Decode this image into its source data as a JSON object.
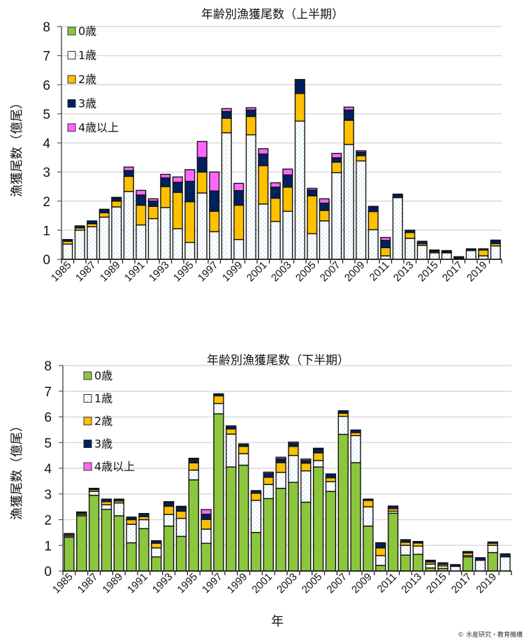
{
  "page": {
    "credit": "© 水産研究・教育機構"
  },
  "chart_data": [
    {
      "type": "bar",
      "stacked": true,
      "title": "年齢別漁獲尾数（上半期）",
      "xlabel": "",
      "ylabel": "漁獲尾数（億尾）",
      "ylim": [
        0,
        8
      ],
      "yticks": [
        "0",
        "1",
        "2",
        "3",
        "4",
        "5",
        "6",
        "7",
        "8"
      ],
      "grid": true,
      "legend_position": "top-left",
      "categories": [
        "1985",
        "1986",
        "1987",
        "1988",
        "1989",
        "1990",
        "1991",
        "1992",
        "1993",
        "1994",
        "1995",
        "1996",
        "1997",
        "1998",
        "1999",
        "2000",
        "2001",
        "2002",
        "2003",
        "2004",
        "2005",
        "2006",
        "2007",
        "2008",
        "2009",
        "2010",
        "2011",
        "2012",
        "2013",
        "2014",
        "2015",
        "2016",
        "2017",
        "2018",
        "2019",
        "2020"
      ],
      "xtick_labels": [
        "1985",
        "1987",
        "1989",
        "1991",
        "1993",
        "1995",
        "1997",
        "1999",
        "2001",
        "2003",
        "2005",
        "2007",
        "2009",
        "2011",
        "2013",
        "2015",
        "2017",
        "2019"
      ],
      "series": [
        {
          "name": "0歳",
          "color": "#8cc63f",
          "pattern": "solid",
          "values": [
            0,
            0,
            0,
            0,
            0,
            0,
            0,
            0,
            0,
            0,
            0,
            0,
            0,
            0,
            0,
            0,
            0,
            0,
            0,
            0,
            0,
            0,
            0,
            0,
            0,
            0,
            0,
            0,
            0,
            0,
            0,
            0,
            0,
            0,
            0,
            0
          ]
        },
        {
          "name": "1歳",
          "color": "#ffffff",
          "pattern": "dots",
          "values": [
            0.52,
            1.0,
            1.12,
            1.45,
            1.8,
            2.33,
            1.18,
            1.4,
            1.78,
            1.05,
            0.58,
            2.28,
            0.95,
            4.35,
            0.68,
            4.28,
            1.9,
            1.3,
            1.65,
            4.75,
            0.88,
            1.32,
            2.98,
            3.95,
            3.38,
            1.02,
            0.12,
            2.12,
            0.72,
            0.48,
            0.22,
            0.22,
            0.03,
            0.3,
            0.12,
            0.46
          ]
        },
        {
          "name": "2歳",
          "color": "#ffc000",
          "pattern": "solid",
          "values": [
            0.1,
            0.08,
            0.1,
            0.15,
            0.2,
            0.52,
            0.68,
            0.42,
            0.72,
            1.25,
            1.4,
            0.72,
            0.7,
            0.5,
            1.18,
            0.63,
            1.32,
            0.8,
            0.83,
            0.95,
            1.3,
            0.36,
            0.36,
            0.83,
            0.18,
            0.62,
            0.28,
            0.02,
            0.2,
            0.06,
            0.04,
            0.03,
            0.03,
            0.0,
            0.2,
            0.08
          ]
        },
        {
          "name": "3歳",
          "color": "#002060",
          "pattern": "solid",
          "values": [
            0.06,
            0.07,
            0.1,
            0.12,
            0.1,
            0.2,
            0.35,
            0.18,
            0.3,
            0.35,
            0.7,
            0.5,
            0.7,
            0.23,
            0.5,
            0.22,
            0.4,
            0.38,
            0.42,
            0.48,
            0.2,
            0.25,
            0.15,
            0.35,
            0.12,
            0.18,
            0.25,
            0.1,
            0.08,
            0.08,
            0.06,
            0.05,
            0.03,
            0.06,
            0.04,
            0.12
          ]
        },
        {
          "name": "4歳以上",
          "color": "#ff66ff",
          "pattern": "solid",
          "values": [
            0,
            0,
            0,
            0,
            0.03,
            0.12,
            0.16,
            0.08,
            0.12,
            0.18,
            0.4,
            0.55,
            0.65,
            0.1,
            0.25,
            0.08,
            0.18,
            0.15,
            0.2,
            0.0,
            0.06,
            0.15,
            0.15,
            0.1,
            0.05,
            0.0,
            0.1,
            0.0,
            0.0,
            0.0,
            0.0,
            0.0,
            0.0,
            0.0,
            0.0,
            0.0
          ]
        }
      ]
    },
    {
      "type": "bar",
      "stacked": true,
      "title": "年齢別漁獲尾数（下半期）",
      "xlabel": "年",
      "ylabel": "漁獲尾数（億尾）",
      "ylim": [
        0,
        8
      ],
      "yticks": [
        "0",
        "1",
        "2",
        "3",
        "4",
        "5",
        "6",
        "7",
        "8"
      ],
      "grid": true,
      "legend_position": "top-left",
      "categories": [
        "1985",
        "1986",
        "1987",
        "1988",
        "1989",
        "1990",
        "1991",
        "1992",
        "1993",
        "1994",
        "1995",
        "1996",
        "1997",
        "1998",
        "1999",
        "2000",
        "2001",
        "2002",
        "2003",
        "2004",
        "2005",
        "2006",
        "2007",
        "2008",
        "2009",
        "2010",
        "2011",
        "2012",
        "2013",
        "2014",
        "2015",
        "2016",
        "2017",
        "2018",
        "2019",
        "2020"
      ],
      "xtick_labels": [
        "1985",
        "1987",
        "1989",
        "1991",
        "1993",
        "1995",
        "1997",
        "1999",
        "2001",
        "2003",
        "2005",
        "2007",
        "2009",
        "2011",
        "2013",
        "2015",
        "2017",
        "2019"
      ],
      "series": [
        {
          "name": "0歳",
          "color": "#8cc63f",
          "pattern": "solid",
          "values": [
            1.32,
            2.15,
            2.95,
            2.4,
            2.15,
            1.1,
            1.65,
            0.55,
            1.75,
            1.35,
            3.55,
            1.08,
            6.12,
            4.05,
            4.12,
            1.5,
            2.82,
            3.22,
            3.45,
            2.68,
            4.05,
            3.1,
            5.32,
            4.22,
            1.75,
            0.22,
            2.25,
            0.62,
            0.65,
            0.12,
            0.1,
            0.0,
            0.55,
            0.0,
            0.72,
            0.0
          ]
        },
        {
          "name": "1歳",
          "color": "#ffffff",
          "pattern": "dots",
          "values": [
            0.05,
            0.05,
            0.15,
            0.18,
            0.5,
            0.72,
            0.35,
            0.35,
            0.45,
            0.7,
            0.38,
            0.55,
            0.4,
            1.28,
            0.45,
            1.25,
            0.55,
            0.62,
            1.05,
            1.22,
            0.25,
            0.38,
            0.7,
            1.05,
            0.75,
            0.38,
            0.08,
            0.38,
            0.32,
            0.15,
            0.1,
            0.18,
            0.05,
            0.42,
            0.28,
            0.55
          ]
        },
        {
          "name": "2歳",
          "color": "#ffc000",
          "pattern": "solid",
          "values": [
            0.05,
            0.05,
            0.07,
            0.12,
            0.08,
            0.18,
            0.12,
            0.18,
            0.32,
            0.28,
            0.28,
            0.38,
            0.3,
            0.2,
            0.28,
            0.28,
            0.28,
            0.38,
            0.35,
            0.3,
            0.3,
            0.15,
            0.12,
            0.12,
            0.25,
            0.3,
            0.1,
            0.12,
            0.12,
            0.08,
            0.06,
            0.0,
            0.1,
            0.0,
            0.08,
            0.0
          ]
        },
        {
          "name": "3歳",
          "color": "#002060",
          "pattern": "solid",
          "values": [
            0.04,
            0.05,
            0.05,
            0.1,
            0.07,
            0.1,
            0.12,
            0.1,
            0.15,
            0.15,
            0.15,
            0.2,
            0.08,
            0.12,
            0.1,
            0.1,
            0.15,
            0.15,
            0.12,
            0.1,
            0.15,
            0.15,
            0.1,
            0.1,
            0.05,
            0.2,
            0.1,
            0.1,
            0.06,
            0.07,
            0.06,
            0.07,
            0.06,
            0.1,
            0.05,
            0.12
          ]
        },
        {
          "name": "4歳以上",
          "color": "#ff66ff",
          "pattern": "solid",
          "values": [
            0,
            0,
            0,
            0,
            0,
            0,
            0,
            0,
            0.03,
            0.04,
            0.03,
            0.18,
            0,
            0,
            0,
            0,
            0.05,
            0.06,
            0.05,
            0.06,
            0.03,
            0,
            0,
            0,
            0,
            0,
            0,
            0,
            0,
            0,
            0,
            0,
            0,
            0,
            0,
            0
          ]
        }
      ]
    }
  ]
}
